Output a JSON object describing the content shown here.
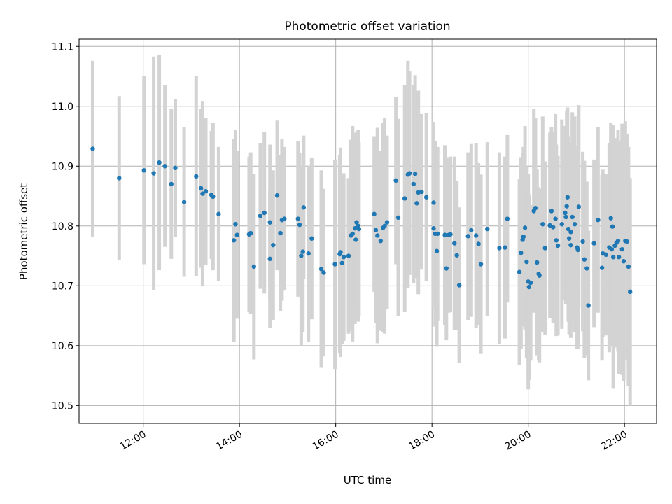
{
  "chart_data": {
    "type": "scatter",
    "title": "Photometric offset variation",
    "xlabel": "UTC time",
    "ylabel": "Photometric offset",
    "x_unit": "hours (UTC)",
    "xlim": [
      "10:40",
      "22:40"
    ],
    "ylim": [
      10.47,
      11.112
    ],
    "grid": true,
    "x_ticks": [
      "12:00",
      "14:00",
      "16:00",
      "18:00",
      "20:00",
      "22:00"
    ],
    "y_ticks": [
      "10.5",
      "10.6",
      "10.7",
      "10.8",
      "10.9",
      "11.0",
      "11.1"
    ],
    "series": [
      {
        "marker_color": "#1f77b4",
        "errorbar_color": "#d3d3d3",
        "points": [
          [
            "10:57",
            10.929,
            0.147
          ],
          [
            "11:30",
            10.88,
            0.137
          ],
          [
            "12:01",
            10.893,
            0.157
          ],
          [
            "12:13",
            10.888,
            0.195
          ],
          [
            "12:20",
            10.906,
            0.18
          ],
          [
            "12:27",
            10.9,
            0.135
          ],
          [
            "12:35",
            10.87,
            0.125
          ],
          [
            "12:40",
            10.897,
            0.115
          ],
          [
            "12:51",
            10.84,
            0.125
          ],
          [
            "13:06",
            10.883,
            0.167
          ],
          [
            "13:12",
            10.863,
            0.133
          ],
          [
            "13:14",
            10.854,
            0.155
          ],
          [
            "13:18",
            10.858,
            0.123
          ],
          [
            "13:25",
            10.852,
            0.107
          ],
          [
            "13:27",
            10.849,
            0.123
          ],
          [
            "13:34",
            10.82,
            0.112
          ],
          [
            "13:53",
            10.776,
            0.17
          ],
          [
            "13:55",
            10.803,
            0.157
          ],
          [
            "13:57",
            10.785,
            0.14
          ],
          [
            "14:12",
            10.786,
            0.13
          ],
          [
            "14:14",
            10.788,
            0.135
          ],
          [
            "14:18",
            10.732,
            0.155
          ],
          [
            "14:26",
            10.817,
            0.122
          ],
          [
            "14:31",
            10.822,
            0.135
          ],
          [
            "14:38",
            10.806,
            0.13
          ],
          [
            "14:38",
            10.745,
            0.115
          ],
          [
            "14:42",
            10.768,
            0.125
          ],
          [
            "14:47",
            10.851,
            0.125
          ],
          [
            "14:51",
            10.788,
            0.13
          ],
          [
            "14:53",
            10.81,
            0.135
          ],
          [
            "14:56",
            10.812,
            0.12
          ],
          [
            "15:13",
            10.812,
            0.13
          ],
          [
            "15:15",
            10.802,
            0.12
          ],
          [
            "15:17",
            10.75,
            0.15
          ],
          [
            "15:19",
            10.757,
            0.135
          ],
          [
            "15:20",
            10.831,
            0.12
          ],
          [
            "15:26",
            10.754,
            0.147
          ],
          [
            "15:30",
            10.779,
            0.135
          ],
          [
            "15:42",
            10.728,
            0.165
          ],
          [
            "15:45",
            10.722,
            0.14
          ],
          [
            "15:59",
            10.736,
            0.175
          ],
          [
            "16:05",
            10.753,
            0.165
          ],
          [
            "16:06",
            10.756,
            0.175
          ],
          [
            "16:08",
            10.738,
            0.135
          ],
          [
            "16:10",
            10.748,
            0.14
          ],
          [
            "16:16",
            10.75,
            0.13
          ],
          [
            "16:19",
            10.784,
            0.16
          ],
          [
            "16:21",
            10.787,
            0.18
          ],
          [
            "16:24",
            10.796,
            0.16
          ],
          [
            "16:25",
            10.777,
            0.12
          ],
          [
            "16:26",
            10.806,
            0.14
          ],
          [
            "16:28",
            10.8,
            0.16
          ],
          [
            "16:29",
            10.795,
            0.145
          ],
          [
            "16:48",
            10.82,
            0.13
          ],
          [
            "16:50",
            10.793,
            0.155
          ],
          [
            "16:52",
            10.784,
            0.18
          ],
          [
            "16:56",
            10.775,
            0.15
          ],
          [
            "16:59",
            10.797,
            0.175
          ],
          [
            "17:01",
            10.8,
            0.18
          ],
          [
            "17:04",
            10.806,
            0.145
          ],
          [
            "17:15",
            10.876,
            0.14
          ],
          [
            "17:18",
            10.814,
            0.165
          ],
          [
            "17:26",
            10.846,
            0.19
          ],
          [
            "17:30",
            10.886,
            0.19
          ],
          [
            "17:32",
            10.888,
            0.17
          ],
          [
            "17:37",
            10.87,
            0.165
          ],
          [
            "17:39",
            10.887,
            0.165
          ],
          [
            "17:41",
            10.838,
            0.125
          ],
          [
            "17:43",
            10.856,
            0.17
          ],
          [
            "17:47",
            10.857,
            0.13
          ],
          [
            "17:53",
            10.848,
            0.14
          ],
          [
            "18:02",
            10.839,
            0.135
          ],
          [
            "18:02",
            10.796,
            0.13
          ],
          [
            "18:04",
            10.787,
            0.155
          ],
          [
            "18:06",
            10.758,
            0.16
          ],
          [
            "18:07",
            10.787,
            0.145
          ],
          [
            "18:16",
            10.785,
            0.15
          ],
          [
            "18:18",
            10.729,
            0.12
          ],
          [
            "18:21",
            10.785,
            0.13
          ],
          [
            "18:23",
            10.786,
            0.13
          ],
          [
            "18:28",
            10.771,
            0.145
          ],
          [
            "18:31",
            10.751,
            0.125
          ],
          [
            "18:34",
            10.701,
            0.13
          ],
          [
            "18:45",
            10.783,
            0.14
          ],
          [
            "18:49",
            10.793,
            0.145
          ],
          [
            "18:55",
            10.784,
            0.155
          ],
          [
            "18:58",
            10.77,
            0.135
          ],
          [
            "19:01",
            10.736,
            0.15
          ],
          [
            "19:09",
            10.795,
            0.145
          ],
          [
            "19:24",
            10.763,
            0.16
          ],
          [
            "19:31",
            10.764,
            0.152
          ],
          [
            "19:34",
            10.812,
            0.14
          ],
          [
            "19:49",
            10.723,
            0.155
          ],
          [
            "19:51",
            10.755,
            0.16
          ],
          [
            "19:53",
            10.777,
            0.145
          ],
          [
            "19:54",
            10.782,
            0.15
          ],
          [
            "19:56",
            10.797,
            0.17
          ],
          [
            "19:58",
            10.74,
            0.16
          ],
          [
            "20:00",
            10.707,
            0.18
          ],
          [
            "20:01",
            10.698,
            0.155
          ],
          [
            "20:03",
            10.705,
            0.13
          ],
          [
            "20:07",
            10.825,
            0.17
          ],
          [
            "20:09",
            10.83,
            0.15
          ],
          [
            "20:11",
            10.739,
            0.155
          ],
          [
            "20:13",
            10.72,
            0.145
          ],
          [
            "20:14",
            10.717,
            0.145
          ],
          [
            "20:18",
            10.803,
            0.18
          ],
          [
            "20:21",
            10.763,
            0.145
          ],
          [
            "20:27",
            10.801,
            0.155
          ],
          [
            "20:29",
            10.825,
            0.14
          ],
          [
            "20:31",
            10.798,
            0.16
          ],
          [
            "20:34",
            10.812,
            0.175
          ],
          [
            "20:35",
            10.776,
            0.16
          ],
          [
            "20:37",
            10.767,
            0.15
          ],
          [
            "20:42",
            10.803,
            0.175
          ],
          [
            "20:46",
            10.822,
            0.145
          ],
          [
            "20:47",
            10.815,
            0.145
          ],
          [
            "20:48",
            10.833,
            0.16
          ],
          [
            "20:49",
            10.848,
            0.15
          ],
          [
            "20:50",
            10.795,
            0.155
          ],
          [
            "20:51",
            10.779,
            0.16
          ],
          [
            "20:53",
            10.79,
            0.145
          ],
          [
            "20:53",
            10.768,
            0.155
          ],
          [
            "20:55",
            10.815,
            0.175
          ],
          [
            "20:58",
            10.803,
            0.18
          ],
          [
            "21:01",
            10.764,
            0.17
          ],
          [
            "21:02",
            10.76,
            0.165
          ],
          [
            "21:03",
            10.832,
            0.17
          ],
          [
            "21:08",
            10.774,
            0.15
          ],
          [
            "21:10",
            10.744,
            0.165
          ],
          [
            "21:13",
            10.729,
            0.145
          ],
          [
            "21:15",
            10.667,
            0.125
          ],
          [
            "21:22",
            10.771,
            0.14
          ],
          [
            "21:27",
            10.81,
            0.155
          ],
          [
            "21:32",
            10.73,
            0.155
          ],
          [
            "21:33",
            10.754,
            0.14
          ],
          [
            "21:37",
            10.752,
            0.135
          ],
          [
            "21:41",
            10.764,
            0.175
          ],
          [
            "21:43",
            10.813,
            0.16
          ],
          [
            "21:44",
            10.761,
            0.16
          ],
          [
            "21:45",
            10.799,
            0.17
          ],
          [
            "21:46",
            10.748,
            0.22
          ],
          [
            "21:48",
            10.767,
            0.17
          ],
          [
            "21:50",
            10.772,
            0.175
          ],
          [
            "21:52",
            10.775,
            0.185
          ],
          [
            "21:53",
            10.748,
            0.195
          ],
          [
            "21:57",
            10.761,
            0.21
          ],
          [
            "21:59",
            10.741,
            0.2
          ],
          [
            "22:01",
            10.775,
            0.2
          ],
          [
            "22:03",
            10.774,
            0.18
          ],
          [
            "22:05",
            10.732,
            0.2
          ],
          [
            "22:07",
            10.69,
            0.19
          ]
        ]
      }
    ]
  }
}
